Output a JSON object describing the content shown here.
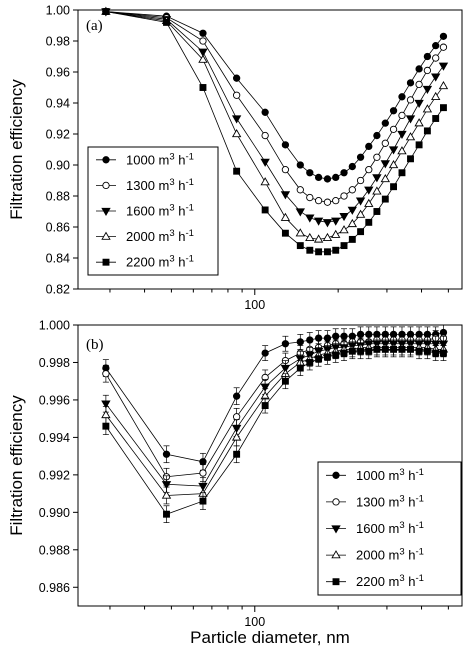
{
  "xlabel": "Particle diameter, nm",
  "chart_data": [
    {
      "type": "line",
      "panel": "(a)",
      "ylabel": "Filtration efficiency",
      "xscale": "log",
      "xlim": [
        23,
        560
      ],
      "ylim": [
        0.82,
        1.0
      ],
      "yticks": [
        "0.82",
        "0.84",
        "0.86",
        "0.88",
        "0.90",
        "0.92",
        "0.94",
        "0.96",
        "0.98",
        "1.00"
      ],
      "xticks": [
        "100"
      ],
      "legend_position": "lower-left",
      "legend": [
        "1000 m3 h-1",
        "1300 m3 h-1",
        "1600 m3 h-1",
        "2000 m3 h-1",
        "2200 m3 h-1"
      ],
      "x": [
        29,
        48,
        65,
        86,
        109,
        129,
        146,
        158,
        170,
        183,
        196,
        210,
        225,
        241,
        258,
        276,
        296,
        317,
        340,
        365,
        392,
        420,
        450,
        480
      ],
      "series": [
        {
          "name": "1000 m3 h-1",
          "marker": "filled-circle",
          "values": [
            0.999,
            0.996,
            0.985,
            0.956,
            0.934,
            0.913,
            0.9,
            0.895,
            0.892,
            0.891,
            0.892,
            0.895,
            0.899,
            0.905,
            0.912,
            0.919,
            0.927,
            0.935,
            0.944,
            0.953,
            0.962,
            0.97,
            0.977,
            0.983
          ]
        },
        {
          "name": "1300 m3 h-1",
          "marker": "open-circle",
          "values": [
            0.999,
            0.995,
            0.98,
            0.945,
            0.919,
            0.897,
            0.884,
            0.879,
            0.877,
            0.876,
            0.877,
            0.88,
            0.884,
            0.89,
            0.897,
            0.905,
            0.914,
            0.923,
            0.932,
            0.942,
            0.952,
            0.961,
            0.969,
            0.976
          ]
        },
        {
          "name": "1600 m3 h-1",
          "marker": "filled-triangle-down",
          "values": [
            0.999,
            0.994,
            0.973,
            0.93,
            0.902,
            0.881,
            0.87,
            0.866,
            0.864,
            0.863,
            0.864,
            0.867,
            0.871,
            0.877,
            0.884,
            0.892,
            0.901,
            0.91,
            0.92,
            0.93,
            0.94,
            0.949,
            0.957,
            0.964
          ]
        },
        {
          "name": "2000 m3 h-1",
          "marker": "open-triangle-up",
          "values": [
            0.999,
            0.993,
            0.968,
            0.92,
            0.889,
            0.866,
            0.856,
            0.853,
            0.852,
            0.853,
            0.855,
            0.858,
            0.862,
            0.868,
            0.875,
            0.883,
            0.891,
            0.9,
            0.909,
            0.918,
            0.927,
            0.936,
            0.944,
            0.951
          ]
        },
        {
          "name": "2200 m3 h-1",
          "marker": "filled-square",
          "values": [
            0.999,
            0.992,
            0.95,
            0.896,
            0.871,
            0.856,
            0.848,
            0.845,
            0.844,
            0.844,
            0.845,
            0.848,
            0.852,
            0.857,
            0.863,
            0.87,
            0.878,
            0.886,
            0.895,
            0.904,
            0.913,
            0.922,
            0.93,
            0.937
          ]
        }
      ]
    },
    {
      "type": "line",
      "panel": "(b)",
      "ylabel": "Filtration efficiency",
      "xlabel": "Particle diameter, nm",
      "xscale": "log",
      "xlim": [
        23,
        560
      ],
      "ylim": [
        0.985,
        1.0
      ],
      "yticks": [
        "0.986",
        "0.988",
        "0.990",
        "0.992",
        "0.994",
        "0.996",
        "0.998",
        "1.000"
      ],
      "xticks": [
        "100"
      ],
      "legend_position": "lower-right",
      "legend": [
        "1000 m3 h-1",
        "1300 m3 h-1",
        "1600 m3 h-1",
        "2000 m3 h-1",
        "2200 m3 h-1"
      ],
      "x": [
        29,
        48,
        65,
        86,
        109,
        129,
        146,
        158,
        170,
        183,
        196,
        210,
        225,
        241,
        258,
        276,
        296,
        317,
        340,
        365,
        392,
        420,
        450,
        480
      ],
      "series": [
        {
          "name": "1000 m3 h-1",
          "marker": "filled-circle",
          "values": [
            0.9977,
            0.9931,
            0.9927,
            0.9962,
            0.9985,
            0.999,
            0.9991,
            0.9992,
            0.9993,
            0.9993,
            0.9994,
            0.9994,
            0.9994,
            0.9995,
            0.9995,
            0.9995,
            0.9995,
            0.9995,
            0.9995,
            0.9995,
            0.9995,
            0.9995,
            0.9995,
            0.9996
          ]
        },
        {
          "name": "1300 m3 h-1",
          "marker": "open-circle",
          "values": [
            0.9974,
            0.9919,
            0.9921,
            0.9951,
            0.9972,
            0.9981,
            0.9985,
            0.9987,
            0.9988,
            0.9989,
            0.999,
            0.999,
            0.9991,
            0.9991,
            0.9991,
            0.9992,
            0.9992,
            0.9992,
            0.9992,
            0.9992,
            0.9992,
            0.9992,
            0.9993,
            0.9993
          ]
        },
        {
          "name": "1600 m3 h-1",
          "marker": "filled-triangle-down",
          "values": [
            0.9958,
            0.9915,
            0.9914,
            0.9945,
            0.9967,
            0.9977,
            0.9982,
            0.9984,
            0.9986,
            0.9987,
            0.9988,
            0.9988,
            0.9989,
            0.9989,
            0.999,
            0.999,
            0.999,
            0.999,
            0.999,
            0.999,
            0.999,
            0.999,
            0.999,
            0.999
          ]
        },
        {
          "name": "2000 m3 h-1",
          "marker": "open-triangle-up",
          "values": [
            0.9952,
            0.9909,
            0.991,
            0.994,
            0.9962,
            0.9974,
            0.998,
            0.9982,
            0.9984,
            0.9985,
            0.9986,
            0.9987,
            0.9987,
            0.9988,
            0.9988,
            0.9988,
            0.9988,
            0.9988,
            0.9988,
            0.9988,
            0.9988,
            0.9988,
            0.9987,
            0.9987
          ]
        },
        {
          "name": "2200 m3 h-1",
          "marker": "filled-square",
          "values": [
            0.9946,
            0.9899,
            0.9906,
            0.9931,
            0.9957,
            0.997,
            0.9977,
            0.998,
            0.9982,
            0.9983,
            0.9984,
            0.9985,
            0.9986,
            0.9986,
            0.9986,
            0.9987,
            0.9987,
            0.9987,
            0.9987,
            0.9987,
            0.9986,
            0.9986,
            0.9985,
            0.9985
          ]
        }
      ],
      "error_bars": "approximately ±0.0005 on most points"
    }
  ]
}
